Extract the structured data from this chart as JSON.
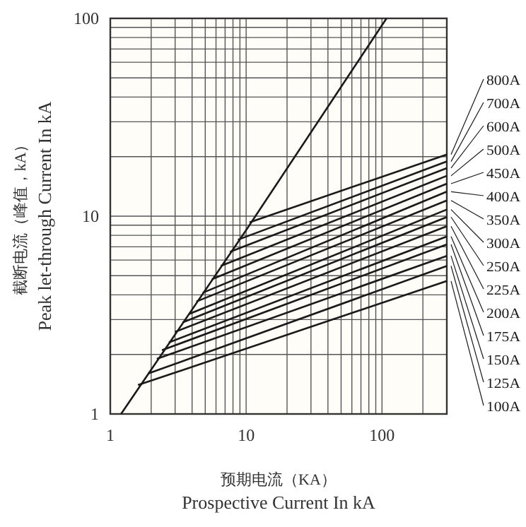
{
  "chart_data": {
    "type": "line",
    "xlabel": "预期电流（KA）\nProspective Current In kA",
    "ylabel": "截断电流（峰值，kA）\nPeak let-through Current In kA",
    "log": "xy",
    "grid": true,
    "legend": "right",
    "xlim": [
      1,
      300
    ],
    "ylim": [
      1,
      100
    ],
    "xticks": [
      1,
      {
        "value": 2,
        "label": null
      },
      {
        "value": 3,
        "label": null
      },
      {
        "value": 4,
        "label": null
      },
      {
        "value": 5,
        "label": null
      },
      {
        "value": 6,
        "label": null
      },
      {
        "value": 7,
        "label": null
      },
      {
        "value": 8,
        "label": null
      },
      {
        "value": 9,
        "label": null
      },
      10,
      {
        "value": 20,
        "label": null
      },
      {
        "value": 30,
        "label": null
      },
      {
        "value": 40,
        "label": null
      },
      {
        "value": 50,
        "label": null
      },
      {
        "value": 60,
        "label": null
      },
      {
        "value": 70,
        "label": null
      },
      {
        "value": 80,
        "label": null
      },
      {
        "value": 90,
        "label": null
      },
      100,
      {
        "value": 200,
        "label": null
      },
      {
        "value": 300,
        "label": null
      }
    ],
    "yticks": [
      1,
      {
        "value": 2,
        "label": null
      },
      {
        "value": 3,
        "label": null
      },
      {
        "value": 4,
        "label": null
      },
      {
        "value": 5,
        "label": null
      },
      {
        "value": 6,
        "label": null
      },
      {
        "value": 7,
        "label": null
      },
      {
        "value": 8,
        "label": null
      },
      {
        "value": 9,
        "label": null
      },
      10,
      {
        "value": 20,
        "label": null
      },
      {
        "value": 30,
        "label": null
      },
      {
        "value": 40,
        "label": null
      },
      {
        "value": 50,
        "label": null
      },
      {
        "value": 60,
        "label": null
      },
      {
        "value": 70,
        "label": null
      },
      {
        "value": 80,
        "label": null
      },
      {
        "value": 90,
        "label": null
      },
      100
    ],
    "series": [
      {
        "color": "#1a1a1a",
        "x": [
          1.2,
          10,
          108
        ],
        "values": [
          1,
          8.5,
          100
        ]
      },
      {
        "name": "800A",
        "color": "#1a1a1a",
        "x": [
          10.6,
          300
        ],
        "values": [
          9.3,
          20.5
        ]
      },
      {
        "name": "700A",
        "color": "#1a1a1a",
        "x": [
          8.7,
          300
        ],
        "values": [
          7.6,
          18.9
        ]
      },
      {
        "name": "600A",
        "color": "#1a1a1a",
        "x": [
          7.6,
          300
        ],
        "values": [
          6.6,
          17.5
        ]
      },
      {
        "name": "500A",
        "color": "#1a1a1a",
        "x": [
          6.5,
          300
        ],
        "values": [
          5.6,
          16
        ]
      },
      {
        "name": "450A",
        "color": "#1a1a1a",
        "x": [
          5.6,
          300
        ],
        "values": [
          4.8,
          14.6
        ]
      },
      {
        "name": "400A",
        "color": "#1a1a1a",
        "x": [
          4.8,
          300
        ],
        "values": [
          4.1,
          13.3
        ]
      },
      {
        "name": "350A",
        "color": "#1a1a1a",
        "x": [
          4.3,
          300
        ],
        "values": [
          3.7,
          12
        ]
      },
      {
        "name": "300A",
        "color": "#1a1a1a",
        "x": [
          3.8,
          300
        ],
        "values": [
          3.2,
          10.8
        ]
      },
      {
        "name": "250A",
        "color": "#1a1a1a",
        "x": [
          3.4,
          300
        ],
        "values": [
          2.9,
          9.9
        ]
      },
      {
        "name": "225A",
        "color": "#1a1a1a",
        "x": [
          3,
          300
        ],
        "values": [
          2.6,
          8.9
        ]
      },
      {
        "name": "200A",
        "color": "#1a1a1a",
        "x": [
          2.7,
          300
        ],
        "values": [
          2.3,
          7.9
        ]
      },
      {
        "name": "175A",
        "color": "#1a1a1a",
        "x": [
          2.4,
          300
        ],
        "values": [
          2.1,
          7.2
        ]
      },
      {
        "name": "150A",
        "color": "#1a1a1a",
        "x": [
          2.2,
          300
        ],
        "values": [
          1.9,
          6.3
        ]
      },
      {
        "name": "125A",
        "color": "#1a1a1a",
        "x": [
          1.9,
          300
        ],
        "values": [
          1.6,
          5.6
        ]
      },
      {
        "name": "100A",
        "color": "#1a1a1a",
        "x": [
          1.6,
          300
        ],
        "values": [
          1.4,
          4.7
        ]
      }
    ]
  }
}
